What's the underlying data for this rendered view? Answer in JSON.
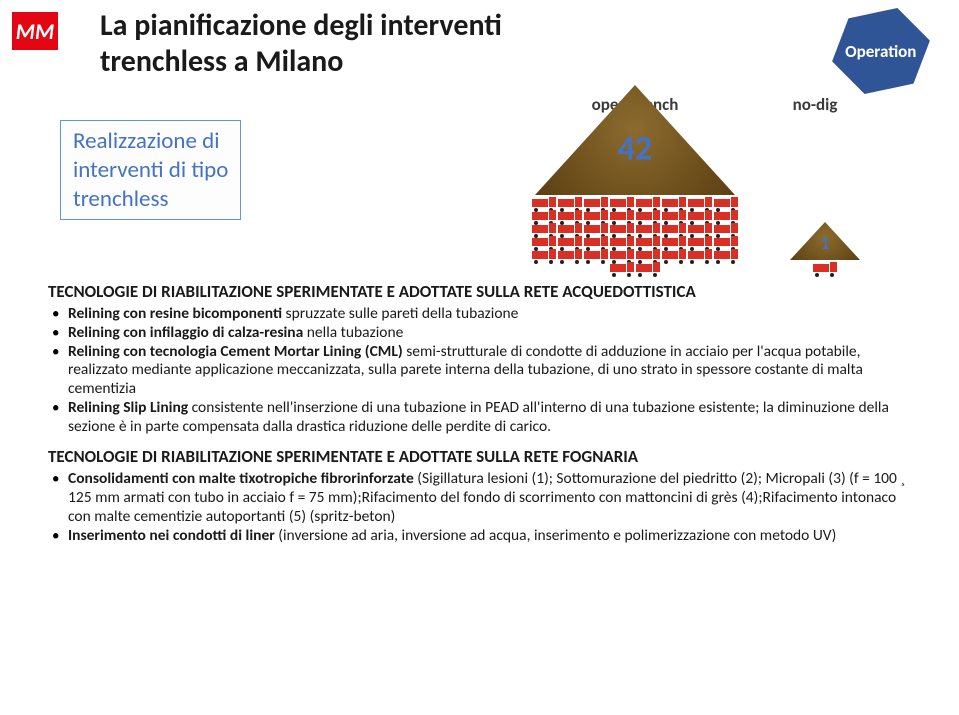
{
  "logo": {
    "text": "MM",
    "bg": "#e30613"
  },
  "title": "La pianificazione degli interventi\ntrenchless a Milano",
  "badge": "Operation",
  "callout": "Realizzazione di\ninterventi di tipo\ntrenchless",
  "infographic": {
    "labels": {
      "left": "open-trench",
      "right": "no-dig"
    },
    "piles": [
      {
        "size": "big",
        "value": 42,
        "trucks": 42
      },
      {
        "size": "small",
        "value": 1,
        "trucks": 1
      }
    ],
    "colors": {
      "pile": "#6b4f1d",
      "number": "#4472c4",
      "truck": "#d93025",
      "bg": "#ffffff"
    }
  },
  "sections": [
    {
      "title": "TECNOLOGIE DI RIABILITAZIONE SPERIMENTATE E ADOTTATE SULLA RETE ACQUEDOTTISTICA",
      "bullets": [
        {
          "bold": "Relining con resine bicomponenti",
          "rest": " spruzzate sulle pareti della tubazione"
        },
        {
          "bold": "Relining con infilaggio di calza-resina",
          "rest": " nella tubazione"
        },
        {
          "bold": "Relining con tecnologia Cement Mortar Lining (CML)",
          "rest": " semi-strutturale di condotte di adduzione in acciaio per l'acqua potabile, realizzato mediante applicazione meccanizzata, sulla parete interna della tubazione, di uno strato in spessore costante di malta cementizia"
        },
        {
          "bold": "Relining Slip Lining",
          "rest": " consistente nell'inserzione di una tubazione in PEAD all'interno di una tubazione esistente; la diminuzione della sezione è in parte compensata dalla drastica riduzione delle perdite di carico."
        }
      ]
    },
    {
      "title": "TECNOLOGIE DI RIABILITAZIONE SPERIMENTATE E ADOTTATE SULLA RETE FOGNARIA",
      "bullets": [
        {
          "bold": "Consolidamenti con malte tixotropiche fibrorinforzate",
          "rest": " (Sigillatura lesioni (1); Sottomurazione del piedritto (2); Micropali (3) (f = 100 ¸ 125 mm armati con tubo in acciaio f = 75 mm);Rifacimento del fondo di scorrimento con mattoncini di grès (4);Rifacimento intonaco con malte cementizie autoportanti (5) (spritz-beton)"
        },
        {
          "bold": "Inserimento nei condotti di liner",
          "rest": " (inversione ad aria, inversione ad acqua, inserimento e polimerizzazione con metodo UV)"
        }
      ]
    }
  ]
}
